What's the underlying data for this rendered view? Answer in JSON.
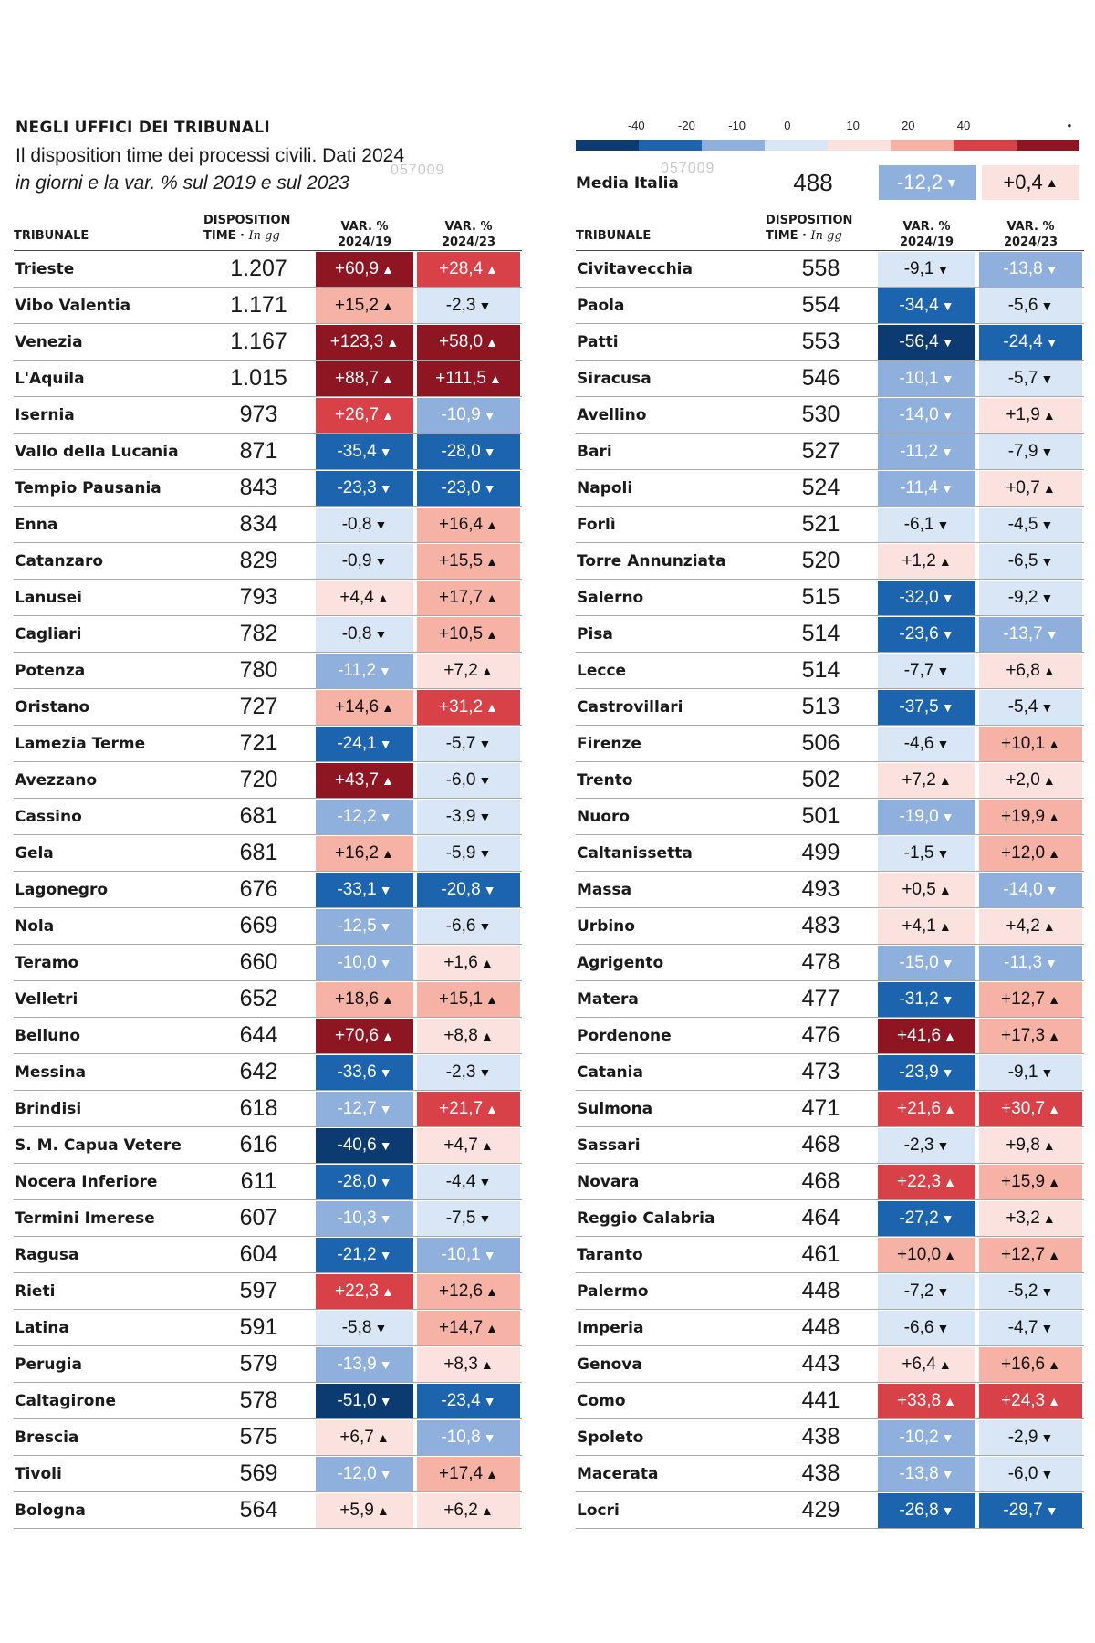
{
  "header": {
    "title": "NEGLI UFFICI DEI TRIBUNALI",
    "subtitle_line1": "Il disposition time dei processi civili. Dati 2024",
    "subtitle_line2": "in giorni e la var. % sul 2019 e sul 2023",
    "watermark": "057009"
  },
  "colors": {
    "dark_blue": "#0b3b70",
    "blue": "#1c64ae",
    "mid_blue": "#8fb0dc",
    "light_blue": "#d8e6f5",
    "light_red": "#fbe2df",
    "pink": "#f5b2a5",
    "red": "#d94149",
    "dark_red": "#8e1622",
    "arrow_up": "▲",
    "arrow_down": "▼"
  },
  "scale": {
    "ticks": [
      "-40",
      "-20",
      "-10",
      "0",
      "10",
      "20",
      "40"
    ],
    "end_marker": "•"
  },
  "national_average": {
    "label": "Media Italia",
    "disposition_time": "488",
    "var_2019": "-12,2",
    "var_2023": "+0,4"
  },
  "columns": {
    "name": "TRIBUNALE",
    "disp_line1": "DISPOSITION",
    "disp_line2": "TIME",
    "disp_unit": "In gg",
    "var19_line1": "VAR. %",
    "var19_line2": "2024/19",
    "var23_line1": "VAR. %",
    "var23_line2": "2024/23"
  },
  "left_table": [
    {
      "name": "Trieste",
      "dt": "1.207",
      "v19": "+60,9",
      "v23": "+28,4"
    },
    {
      "name": "Vibo Valentia",
      "dt": "1.171",
      "v19": "+15,2",
      "v23": "-2,3"
    },
    {
      "name": "Venezia",
      "dt": "1.167",
      "v19": "+123,3",
      "v23": "+58,0"
    },
    {
      "name": "L'Aquila",
      "dt": "1.015",
      "v19": "+88,7",
      "v23": "+111,5"
    },
    {
      "name": "Isernia",
      "dt": "973",
      "v19": "+26,7",
      "v23": "-10,9"
    },
    {
      "name": "Vallo della Lucania",
      "dt": "871",
      "v19": "-35,4",
      "v23": "-28,0"
    },
    {
      "name": "Tempio Pausania",
      "dt": "843",
      "v19": "-23,3",
      "v23": "-23,0"
    },
    {
      "name": "Enna",
      "dt": "834",
      "v19": "-0,8",
      "v23": "+16,4"
    },
    {
      "name": "Catanzaro",
      "dt": "829",
      "v19": "-0,9",
      "v23": "+15,5"
    },
    {
      "name": "Lanusei",
      "dt": "793",
      "v19": "+4,4",
      "v23": "+17,7"
    },
    {
      "name": "Cagliari",
      "dt": "782",
      "v19": "-0,8",
      "v23": "+10,5"
    },
    {
      "name": "Potenza",
      "dt": "780",
      "v19": "-11,2",
      "v23": "+7,2"
    },
    {
      "name": "Oristano",
      "dt": "727",
      "v19": "+14,6",
      "v23": "+31,2"
    },
    {
      "name": "Lamezia Terme",
      "dt": "721",
      "v19": "-24,1",
      "v23": "-5,7"
    },
    {
      "name": "Avezzano",
      "dt": "720",
      "v19": "+43,7",
      "v23": "-6,0"
    },
    {
      "name": "Cassino",
      "dt": "681",
      "v19": "-12,2",
      "v23": "-3,9"
    },
    {
      "name": "Gela",
      "dt": "681",
      "v19": "+16,2",
      "v23": "-5,9"
    },
    {
      "name": "Lagonegro",
      "dt": "676",
      "v19": "-33,1",
      "v23": "-20,8"
    },
    {
      "name": "Nola",
      "dt": "669",
      "v19": "-12,5",
      "v23": "-6,6"
    },
    {
      "name": "Teramo",
      "dt": "660",
      "v19": "-10,0",
      "v23": "+1,6"
    },
    {
      "name": "Velletri",
      "dt": "652",
      "v19": "+18,6",
      "v23": "+15,1"
    },
    {
      "name": "Belluno",
      "dt": "644",
      "v19": "+70,6",
      "v23": "+8,8"
    },
    {
      "name": "Messina",
      "dt": "642",
      "v19": "-33,6",
      "v23": "-2,3"
    },
    {
      "name": "Brindisi",
      "dt": "618",
      "v19": "-12,7",
      "v23": "+21,7"
    },
    {
      "name": "S. M. Capua Vetere",
      "dt": "616",
      "v19": "-40,6",
      "v23": "+4,7"
    },
    {
      "name": "Nocera Inferiore",
      "dt": "611",
      "v19": "-28,0",
      "v23": "-4,4"
    },
    {
      "name": "Termini Imerese",
      "dt": "607",
      "v19": "-10,3",
      "v23": "-7,5"
    },
    {
      "name": "Ragusa",
      "dt": "604",
      "v19": "-21,2",
      "v23": "-10,1"
    },
    {
      "name": "Rieti",
      "dt": "597",
      "v19": "+22,3",
      "v23": "+12,6"
    },
    {
      "name": "Latina",
      "dt": "591",
      "v19": "-5,8",
      "v23": "+14,7"
    },
    {
      "name": "Perugia",
      "dt": "579",
      "v19": "-13,9",
      "v23": "+8,3"
    },
    {
      "name": "Caltagirone",
      "dt": "578",
      "v19": "-51,0",
      "v23": "-23,4"
    },
    {
      "name": "Brescia",
      "dt": "575",
      "v19": "+6,7",
      "v23": "-10,8"
    },
    {
      "name": "Tivoli",
      "dt": "569",
      "v19": "-12,0",
      "v23": "+17,4"
    },
    {
      "name": "Bologna",
      "dt": "564",
      "v19": "+5,9",
      "v23": "+6,2"
    }
  ],
  "right_table": [
    {
      "name": "Civitavecchia",
      "dt": "558",
      "v19": "-9,1",
      "v23": "-13,8"
    },
    {
      "name": "Paola",
      "dt": "554",
      "v19": "-34,4",
      "v23": "-5,6"
    },
    {
      "name": "Patti",
      "dt": "553",
      "v19": "-56,4",
      "v23": "-24,4"
    },
    {
      "name": "Siracusa",
      "dt": "546",
      "v19": "-10,1",
      "v23": "-5,7"
    },
    {
      "name": "Avellino",
      "dt": "530",
      "v19": "-14,0",
      "v23": "+1,9"
    },
    {
      "name": "Bari",
      "dt": "527",
      "v19": "-11,2",
      "v23": "-7,9"
    },
    {
      "name": "Napoli",
      "dt": "524",
      "v19": "-11,4",
      "v23": "+0,7"
    },
    {
      "name": "Forlì",
      "dt": "521",
      "v19": "-6,1",
      "v23": "-4,5"
    },
    {
      "name": "Torre Annunziata",
      "dt": "520",
      "v19": "+1,2",
      "v23": "-6,5"
    },
    {
      "name": "Salerno",
      "dt": "515",
      "v19": "-32,0",
      "v23": "-9,2"
    },
    {
      "name": "Pisa",
      "dt": "514",
      "v19": "-23,6",
      "v23": "-13,7"
    },
    {
      "name": "Lecce",
      "dt": "514",
      "v19": "-7,7",
      "v23": "+6,8"
    },
    {
      "name": "Castrovillari",
      "dt": "513",
      "v19": "-37,5",
      "v23": "-5,4"
    },
    {
      "name": "Firenze",
      "dt": "506",
      "v19": "-4,6",
      "v23": "+10,1"
    },
    {
      "name": "Trento",
      "dt": "502",
      "v19": "+7,2",
      "v23": "+2,0"
    },
    {
      "name": "Nuoro",
      "dt": "501",
      "v19": "-19,0",
      "v23": "+19,9"
    },
    {
      "name": "Caltanissetta",
      "dt": "499",
      "v19": "-1,5",
      "v23": "+12,0"
    },
    {
      "name": "Massa",
      "dt": "493",
      "v19": "+0,5",
      "v23": "-14,0"
    },
    {
      "name": "Urbino",
      "dt": "483",
      "v19": "+4,1",
      "v23": "+4,2"
    },
    {
      "name": "Agrigento",
      "dt": "478",
      "v19": "-15,0",
      "v23": "-11,3"
    },
    {
      "name": "Matera",
      "dt": "477",
      "v19": "-31,2",
      "v23": "+12,7"
    },
    {
      "name": "Pordenone",
      "dt": "476",
      "v19": "+41,6",
      "v23": "+17,3"
    },
    {
      "name": "Catania",
      "dt": "473",
      "v19": "-23,9",
      "v23": "-9,1"
    },
    {
      "name": "Sulmona",
      "dt": "471",
      "v19": "+21,6",
      "v23": "+30,7"
    },
    {
      "name": "Sassari",
      "dt": "468",
      "v19": "-2,3",
      "v23": "+9,8"
    },
    {
      "name": "Novara",
      "dt": "468",
      "v19": "+22,3",
      "v23": "+15,9"
    },
    {
      "name": "Reggio Calabria",
      "dt": "464",
      "v19": "-27,2",
      "v23": "+3,2"
    },
    {
      "name": "Taranto",
      "dt": "461",
      "v19": "+10,0",
      "v23": "+12,7"
    },
    {
      "name": "Palermo",
      "dt": "448",
      "v19": "-7,2",
      "v23": "-5,2"
    },
    {
      "name": "Imperia",
      "dt": "448",
      "v19": "-6,6",
      "v23": "-4,7"
    },
    {
      "name": "Genova",
      "dt": "443",
      "v19": "+6,4",
      "v23": "+16,6"
    },
    {
      "name": "Como",
      "dt": "441",
      "v19": "+33,8",
      "v23": "+24,3"
    },
    {
      "name": "Spoleto",
      "dt": "438",
      "v19": "-10,2",
      "v23": "-2,9"
    },
    {
      "name": "Macerata",
      "dt": "438",
      "v19": "-13,8",
      "v23": "-6,0"
    },
    {
      "name": "Locri",
      "dt": "429",
      "v19": "-26,8",
      "v23": "-29,7"
    }
  ]
}
